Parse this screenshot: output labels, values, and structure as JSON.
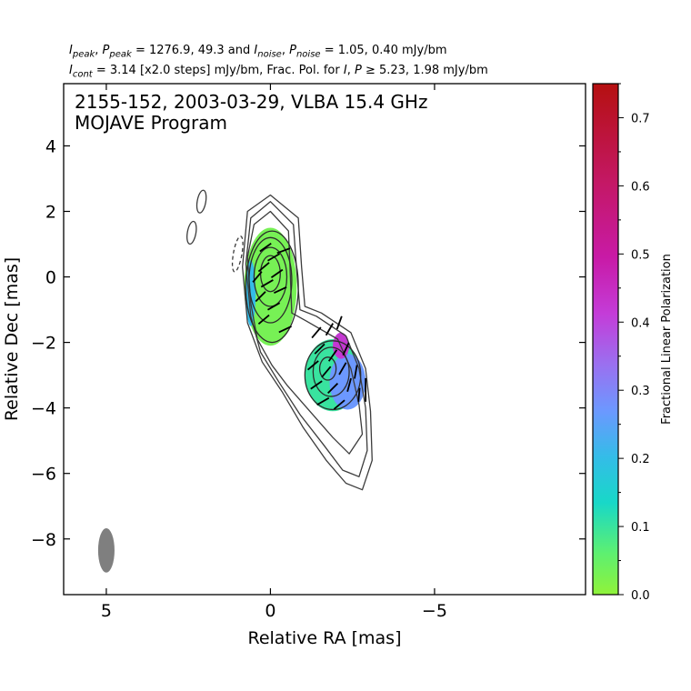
{
  "header": {
    "line1": {
      "i_sym": "I",
      "i_sub": "peak",
      "p_sym": "P",
      "p_sub": "peak",
      "peak_values": "= 1276.9, 49.3 and",
      "n_i_sym": "I",
      "n_i_sub": "noise",
      "n_p_sym": "P",
      "n_p_sub": "noise",
      "noise_values": "= 1.05, 0.40 mJy/bm"
    },
    "line2": {
      "c_sym": "I",
      "c_sub": "cont",
      "cont_text": "= 3.14 [x2.0 steps] mJy/bm, Frac. Pol. for",
      "fi_sym": "I",
      "fp_sym": "P",
      "threshold_text": "≥  5.23, 1.98 mJy/bm"
    }
  },
  "chart_data": {
    "type": "contour",
    "title_line1": "2155-152, 2003-03-29, VLBA 15.4 GHz",
    "title_line2": "MOJAVE Program",
    "xlabel": "Relative RA [mas]",
    "ylabel": "Relative Dec [mas]",
    "xlim": [
      6.3,
      -9.6
    ],
    "ylim": [
      -9.7,
      5.9
    ],
    "x_ticks": [
      5,
      0,
      -5
    ],
    "x_tick_labels": [
      "5",
      "0",
      "−5"
    ],
    "y_ticks": [
      4,
      2,
      0,
      -2,
      -4,
      -6,
      -8
    ],
    "y_tick_labels": [
      "4",
      "2",
      "0",
      "−2",
      "−4",
      "−6",
      "−8"
    ],
    "beam": {
      "x": 5.0,
      "y": -8.35,
      "major_mas": 1.35,
      "minor_mas": 0.5,
      "pa_deg": 0
    },
    "colorbar": {
      "label": "Fractional Linear Polarization",
      "ticks": [
        0.0,
        0.1,
        0.2,
        0.3,
        0.4,
        0.5,
        0.6,
        0.7
      ],
      "tick_labels": [
        "0.0",
        "0.1",
        "0.2",
        "0.3",
        "0.4",
        "0.5",
        "0.6",
        "0.7"
      ],
      "range": [
        0.0,
        0.75
      ]
    },
    "contours_core": [
      {
        "cx": 0.0,
        "cy": 0.1,
        "rx": 0.3,
        "ry": 0.55,
        "dashed": false
      },
      {
        "cx": 0.0,
        "cy": 0.0,
        "rx": 0.5,
        "ry": 0.9,
        "dashed": false
      },
      {
        "cx": 0.0,
        "cy": -0.1,
        "rx": 0.65,
        "ry": 1.3,
        "dashed": false
      },
      {
        "cx": -0.05,
        "cy": -0.3,
        "rx": 0.8,
        "ry": 1.7,
        "dashed": false
      }
    ],
    "contours_knot": [
      {
        "cx": -1.75,
        "cy": -2.8,
        "rx": 0.25,
        "ry": 0.35,
        "dashed": false
      },
      {
        "cx": -1.85,
        "cy": -2.9,
        "rx": 0.55,
        "ry": 0.75,
        "dashed": false
      },
      {
        "cx": -1.9,
        "cy": -3.0,
        "rx": 0.85,
        "ry": 1.05,
        "dashed": false
      }
    ],
    "contours_envelope": [
      [
        [
          0.0,
          2.0
        ],
        [
          -0.55,
          1.4
        ],
        [
          -0.6,
          0.2
        ],
        [
          -0.65,
          -1.1
        ],
        [
          -1.1,
          -1.35
        ],
        [
          -2.05,
          -1.9
        ],
        [
          -2.45,
          -2.8
        ],
        [
          -2.7,
          -3.9
        ],
        [
          -2.8,
          -4.8
        ],
        [
          -2.4,
          -5.4
        ],
        [
          -1.9,
          -4.9
        ],
        [
          -1.2,
          -4.1
        ],
        [
          -0.5,
          -3.3
        ],
        [
          -0.05,
          -2.7
        ],
        [
          0.4,
          -1.9
        ],
        [
          0.6,
          -0.8
        ],
        [
          0.7,
          0.6
        ],
        [
          0.5,
          1.6
        ]
      ],
      [
        [
          0.0,
          2.3
        ],
        [
          -0.7,
          1.6
        ],
        [
          -0.8,
          0.2
        ],
        [
          -0.9,
          -1.0
        ],
        [
          -1.4,
          -1.2
        ],
        [
          -2.3,
          -1.8
        ],
        [
          -2.7,
          -2.8
        ],
        [
          -2.9,
          -4.0
        ],
        [
          -2.95,
          -5.3
        ],
        [
          -2.7,
          -6.1
        ],
        [
          -2.2,
          -5.9
        ],
        [
          -1.6,
          -5.1
        ],
        [
          -0.9,
          -4.2
        ],
        [
          -0.25,
          -3.2
        ],
        [
          0.3,
          -2.3
        ],
        [
          0.6,
          -1.2
        ],
        [
          0.75,
          0.4
        ],
        [
          0.6,
          1.8
        ]
      ],
      [
        [
          0.0,
          2.5
        ],
        [
          -0.85,
          1.8
        ],
        [
          -0.95,
          0.3
        ],
        [
          -1.05,
          -0.9
        ],
        [
          -1.55,
          -1.1
        ],
        [
          -2.45,
          -1.7
        ],
        [
          -2.9,
          -2.8
        ],
        [
          -3.05,
          -4.1
        ],
        [
          -3.1,
          -5.6
        ],
        [
          -2.8,
          -6.5
        ],
        [
          -2.3,
          -6.3
        ],
        [
          -1.7,
          -5.6
        ],
        [
          -1.0,
          -4.6
        ],
        [
          -0.35,
          -3.5
        ],
        [
          0.25,
          -2.6
        ],
        [
          0.7,
          -1.4
        ],
        [
          0.85,
          0.3
        ],
        [
          0.7,
          2.0
        ]
      ]
    ],
    "contours_isolated": [
      {
        "cx": 2.1,
        "cy": 2.3,
        "rx": 0.13,
        "ry": 0.35,
        "dashed": false
      },
      {
        "cx": 2.4,
        "cy": 1.35,
        "rx": 0.13,
        "ry": 0.35,
        "dashed": false
      },
      {
        "cx": 1.0,
        "cy": 0.7,
        "rx": 0.13,
        "ry": 0.55,
        "dashed": true
      }
    ],
    "pol_regions": [
      {
        "label": "core",
        "cx": 0.0,
        "cy": -0.3,
        "rx": 0.8,
        "ry": 1.8,
        "frac": 0.03
      },
      {
        "label": "core-edge",
        "cx": 0.6,
        "cy": -0.5,
        "rx": 0.15,
        "ry": 1.0,
        "frac": 0.2
      },
      {
        "label": "knot",
        "cx": -1.9,
        "cy": -3.0,
        "rx": 0.85,
        "ry": 1.1,
        "frac": 0.1
      },
      {
        "label": "knot-west",
        "cx": -2.35,
        "cy": -3.2,
        "rx": 0.55,
        "ry": 0.85,
        "frac": 0.27
      },
      {
        "label": "knot-north",
        "cx": -2.15,
        "cy": -2.1,
        "rx": 0.25,
        "ry": 0.4,
        "frac": 0.42
      }
    ],
    "evpa_vectors": [
      {
        "x": 0.15,
        "y": 0.9,
        "angle": -35
      },
      {
        "x": -0.1,
        "y": 0.6,
        "angle": -30
      },
      {
        "x": 0.2,
        "y": 0.3,
        "angle": -40
      },
      {
        "x": -0.2,
        "y": 0.1,
        "angle": -35
      },
      {
        "x": 0.1,
        "y": -0.2,
        "angle": -30
      },
      {
        "x": -0.3,
        "y": -0.4,
        "angle": -25
      },
      {
        "x": 0.3,
        "y": -0.6,
        "angle": -45
      },
      {
        "x": -0.1,
        "y": -0.9,
        "angle": -30
      },
      {
        "x": 0.2,
        "y": -1.3,
        "angle": -40
      },
      {
        "x": -0.4,
        "y": 0.8,
        "angle": -20
      },
      {
        "x": 0.4,
        "y": 0.0,
        "angle": -50
      },
      {
        "x": -0.45,
        "y": -1.6,
        "angle": -25
      },
      {
        "x": -1.4,
        "y": -1.7,
        "angle": -50
      },
      {
        "x": -1.8,
        "y": -1.6,
        "angle": -60
      },
      {
        "x": -2.1,
        "y": -1.4,
        "angle": -70
      },
      {
        "x": -1.5,
        "y": -2.2,
        "angle": -45
      },
      {
        "x": -1.9,
        "y": -2.4,
        "angle": -55
      },
      {
        "x": -2.3,
        "y": -2.2,
        "angle": -65
      },
      {
        "x": -1.3,
        "y": -2.7,
        "angle": -40
      },
      {
        "x": -1.7,
        "y": -2.9,
        "angle": -50
      },
      {
        "x": -2.2,
        "y": -2.8,
        "angle": -60
      },
      {
        "x": -2.6,
        "y": -2.9,
        "angle": -80
      },
      {
        "x": -1.4,
        "y": -3.3,
        "angle": -35
      },
      {
        "x": -1.9,
        "y": -3.4,
        "angle": -45
      },
      {
        "x": -2.4,
        "y": -3.3,
        "angle": -75
      },
      {
        "x": -2.9,
        "y": -3.3,
        "angle": -90
      },
      {
        "x": -1.6,
        "y": -3.8,
        "angle": -30
      },
      {
        "x": -2.1,
        "y": -3.9,
        "angle": -40
      },
      {
        "x": -2.7,
        "y": -3.6,
        "angle": -85
      },
      {
        "x": -2.9,
        "y": -3.6,
        "angle": -90
      }
    ]
  }
}
